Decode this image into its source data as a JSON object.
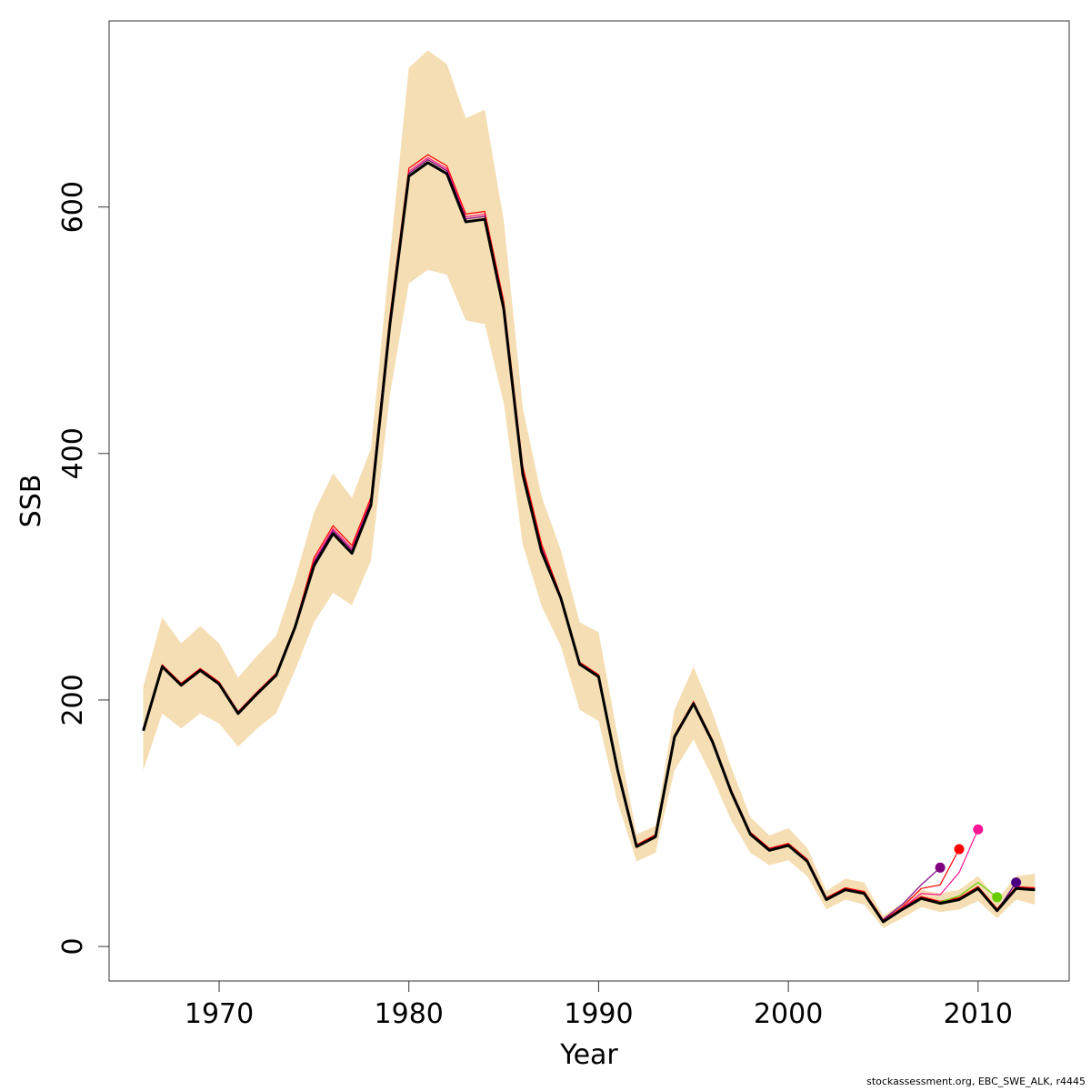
{
  "chart_data": {
    "type": "line",
    "title": "",
    "xlabel": "Year",
    "ylabel": "SSB",
    "xlim": [
      1964.2,
      2014.8
    ],
    "ylim": [
      -28,
      751
    ],
    "x_ticks": [
      1970,
      1980,
      1990,
      2000,
      2010
    ],
    "y_ticks": [
      0,
      200,
      400,
      600
    ],
    "grid": false,
    "legend": "none",
    "colors": {
      "band": "#f5deb3",
      "main": "#000000",
      "retro": [
        "#800080",
        "#ff0000",
        "#ff1493",
        "#66cc00",
        "#4b0082"
      ]
    },
    "years": [
      1966,
      1967,
      1968,
      1969,
      1970,
      1971,
      1972,
      1973,
      1974,
      1975,
      1976,
      1977,
      1978,
      1979,
      1980,
      1981,
      1982,
      1983,
      1984,
      1985,
      1986,
      1987,
      1988,
      1989,
      1990,
      1991,
      1992,
      1993,
      1994,
      1995,
      1996,
      1997,
      1998,
      1999,
      2000,
      2001,
      2002,
      2003,
      2004,
      2005,
      2006,
      2007,
      2008,
      2009,
      2010,
      2011,
      2012,
      2013
    ],
    "ssb": [
      175,
      227,
      212,
      224,
      213,
      189,
      205,
      220,
      259,
      309,
      335,
      319,
      358,
      505,
      625,
      636,
      627,
      588,
      590,
      517,
      383,
      320,
      283,
      229,
      219,
      143,
      81,
      89,
      170,
      197,
      166,
      125,
      91,
      78,
      82,
      69,
      38,
      46,
      43,
      20,
      30,
      39,
      35,
      38,
      47,
      29,
      47,
      46
    ],
    "ci_upper": [
      211,
      267,
      246,
      260,
      246,
      218,
      236,
      252,
      298,
      352,
      384,
      364,
      404,
      560,
      713,
      727,
      716,
      672,
      679,
      589,
      437,
      365,
      322,
      263,
      255,
      171,
      91,
      98,
      192,
      227,
      190,
      145,
      105,
      90,
      96,
      80,
      45,
      55,
      52,
      25,
      35,
      46,
      43,
      46,
      57,
      38,
      57,
      59
    ],
    "ci_lower": [
      143,
      189,
      177,
      189,
      181,
      162,
      177,
      189,
      224,
      263,
      287,
      277,
      313,
      448,
      538,
      549,
      545,
      508,
      505,
      441,
      326,
      276,
      244,
      192,
      183,
      117,
      69,
      76,
      143,
      168,
      137,
      102,
      76,
      66,
      70,
      57,
      30,
      38,
      34,
      15,
      23,
      32,
      28,
      30,
      37,
      23,
      38,
      34
    ],
    "retro_runs": [
      {
        "color": "#800080",
        "start_year": 2005,
        "values": [
          22,
          34,
          50,
          64
        ],
        "last_year": 2008
      },
      {
        "color": "#ff0000",
        "start_year": 2005,
        "values": [
          21,
          32,
          47,
          50,
          79
        ],
        "last_year": 2009
      },
      {
        "color": "#ff1493",
        "start_year": 2005,
        "values": [
          21,
          31,
          43,
          42,
          60,
          95
        ],
        "last_year": 2010
      },
      {
        "color": "#66cc00",
        "start_year": 2005,
        "values": [
          20,
          30,
          39,
          36,
          41,
          52,
          40
        ],
        "last_year": 2011
      },
      {
        "color": "#4b0082",
        "start_year": 2005,
        "values": [
          20,
          30,
          39,
          35,
          38,
          47,
          29,
          52
        ],
        "last_year": 2012
      }
    ],
    "retro_full_overlay": {
      "colors": [
        "#ff1493",
        "#ff0000",
        "#800080"
      ],
      "offsets": [
        1.0,
        1.6,
        0.6
      ]
    }
  },
  "footer": {
    "text": "stockassessment.org, EBC_SWE_ALK, r4445"
  }
}
